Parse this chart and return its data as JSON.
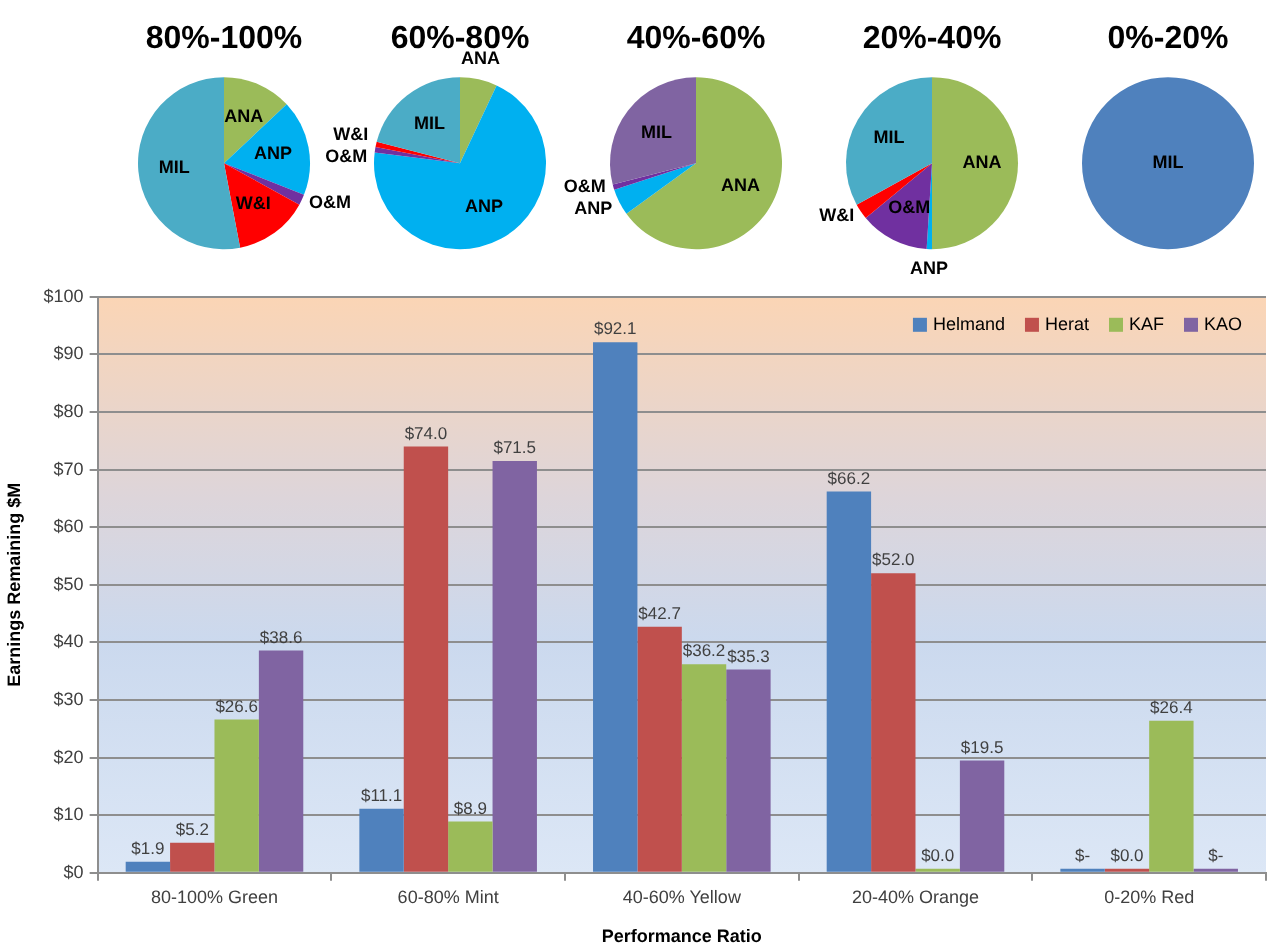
{
  "chart_data": [
    {
      "type": "pie",
      "title": "80%-100%",
      "categories": [
        "ANA",
        "ANP",
        "O&M",
        "W&I",
        "MIL"
      ],
      "values": [
        13,
        18,
        2,
        14,
        53
      ],
      "colors": [
        "#9bbb59",
        "#00b0f0",
        "#7030a0",
        "#ff0000",
        "#4bacc6"
      ]
    },
    {
      "type": "pie",
      "title": "60%-80%",
      "categories": [
        "ANA",
        "ANP",
        "O&M",
        "W&I",
        "MIL"
      ],
      "values": [
        7,
        70,
        1,
        1,
        21
      ],
      "colors": [
        "#9bbb59",
        "#00b0f0",
        "#7030a0",
        "#ff0000",
        "#4bacc6"
      ]
    },
    {
      "type": "pie",
      "title": "40%-60%",
      "categories": [
        "ANA",
        "ANP",
        "O&M",
        "MIL"
      ],
      "values": [
        65,
        5,
        1,
        29
      ],
      "colors": [
        "#9bbb59",
        "#00b0f0",
        "#7030a0",
        "#8064a2"
      ]
    },
    {
      "type": "pie",
      "title": "20%-40%",
      "categories": [
        "ANA",
        "ANP",
        "O&M",
        "W&I",
        "MIL"
      ],
      "values": [
        50,
        1,
        13,
        3,
        33
      ],
      "colors": [
        "#9bbb59",
        "#00b0f0",
        "#7030a0",
        "#ff0000",
        "#4bacc6"
      ]
    },
    {
      "type": "pie",
      "title": "0%-20%",
      "categories": [
        "MIL"
      ],
      "values": [
        100
      ],
      "colors": [
        "#4f81bd"
      ]
    },
    {
      "type": "bar",
      "xlabel": "Performance Ratio",
      "ylabel": "Earnings Remaining $M",
      "categories": [
        "80-100% Green",
        "60-80% Mint",
        "40-60% Yellow",
        "20-40% Orange",
        "0-20% Red"
      ],
      "series": [
        {
          "name": "Helmand",
          "color": "#4f81bd",
          "values": [
            1.9,
            11.1,
            92.1,
            66.2,
            0
          ],
          "value_labels": [
            "$1.9",
            "$11.1",
            "$92.1",
            "$66.2",
            "$-"
          ]
        },
        {
          "name": "Herat",
          "color": "#c0504d",
          "values": [
            5.2,
            74.0,
            42.7,
            52.0,
            0
          ],
          "value_labels": [
            "$5.2",
            "$74.0",
            "$42.7",
            "$52.0",
            "$0.0"
          ]
        },
        {
          "name": "KAF",
          "color": "#9bbb59",
          "values": [
            26.6,
            8.9,
            36.2,
            0,
            26.4
          ],
          "value_labels": [
            "$26.6",
            "$8.9",
            "$36.2",
            "$0.0",
            "$26.4"
          ]
        },
        {
          "name": "KAO",
          "color": "#8064a2",
          "values": [
            38.6,
            71.5,
            35.3,
            19.5,
            0
          ],
          "value_labels": [
            "$38.6",
            "$71.5",
            "$35.3",
            "$19.5",
            "$-"
          ]
        }
      ],
      "ylim": [
        0,
        100
      ],
      "yticks": [
        {
          "value": 0,
          "label": "$0"
        },
        {
          "value": 10,
          "label": "$10"
        },
        {
          "value": 20,
          "label": "$20"
        },
        {
          "value": 30,
          "label": "$30"
        },
        {
          "value": 40,
          "label": "$40"
        },
        {
          "value": 50,
          "label": "$50"
        },
        {
          "value": 60,
          "label": "$60"
        },
        {
          "value": 70,
          "label": "$70"
        },
        {
          "value": 80,
          "label": "$80"
        },
        {
          "value": 90,
          "label": "$90"
        },
        {
          "value": 100,
          "label": "$100"
        }
      ],
      "grid": "y",
      "legend": "top right"
    }
  ]
}
